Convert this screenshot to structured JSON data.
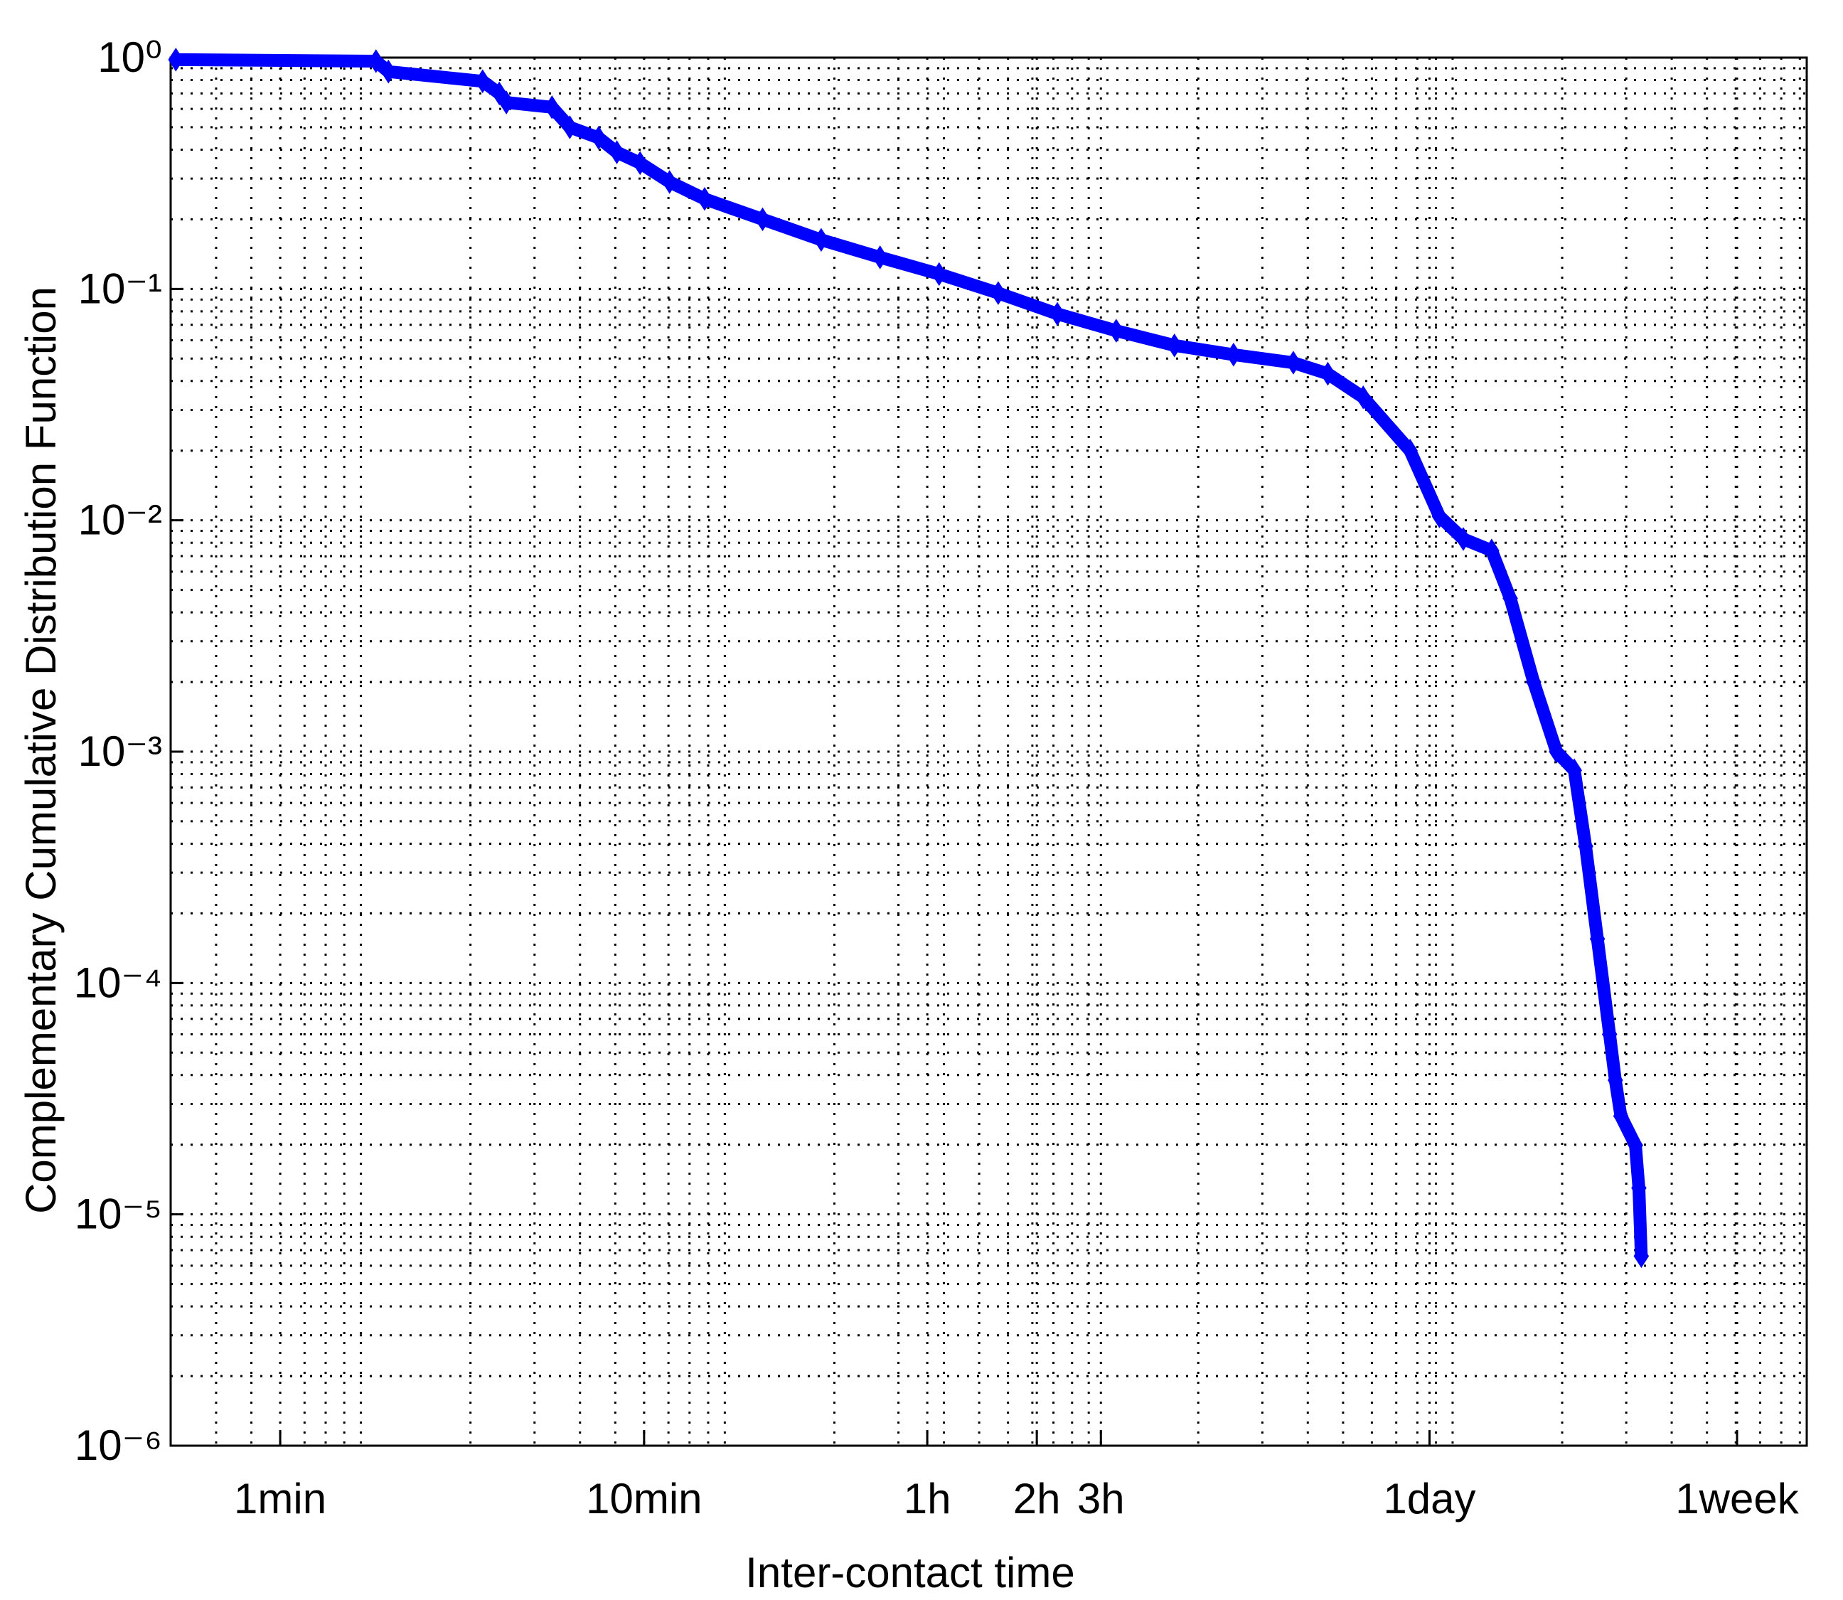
{
  "chart_data": {
    "type": "line",
    "x_label": "Inter-contact time",
    "y_label": "Complementary Cumulative Distribution Function",
    "xscale": "log",
    "yscale": "log",
    "grid": true,
    "minor_grid": true,
    "marker": "diamond",
    "xlim": [
      30,
      940000
    ],
    "ylim": [
      1e-06,
      1
    ],
    "xticks": [
      {
        "value": 60,
        "label": "1min"
      },
      {
        "value": 600,
        "label": "10min"
      },
      {
        "value": 3600,
        "label": "1h"
      },
      {
        "value": 7200,
        "label": "2h"
      },
      {
        "value": 10800,
        "label": "3h"
      },
      {
        "value": 86400,
        "label": "1day"
      },
      {
        "value": 604800,
        "label": "1week"
      }
    ],
    "yticks": [
      {
        "value": 1e-06,
        "label": "10⁻⁶"
      },
      {
        "value": 1e-05,
        "label": "10⁻⁵"
      },
      {
        "value": 0.0001,
        "label": "10⁻⁴"
      },
      {
        "value": 0.001,
        "label": "10⁻³"
      },
      {
        "value": 0.01,
        "label": "10⁻²"
      },
      {
        "value": 0.1,
        "label": "10⁻¹"
      },
      {
        "value": 1,
        "label": "10⁰"
      }
    ],
    "series": [
      {
        "color": "#0000ff",
        "x": [
          31,
          110,
          119,
          216,
          240,
          251,
          335,
          375,
          450,
          505,
          585,
          705,
          880,
          1270,
          1840,
          2670,
          3880,
          5640,
          8200,
          11900,
          17200,
          25000,
          36500,
          45400,
          56800,
          76400,
          92000,
          107000,
          128000,
          144000,
          167000,
          193000,
          216000,
          232000,
          250000,
          270000,
          280000,
          290000,
          318000,
          325000,
          330000
        ],
        "values": [
          0.98,
          0.965,
          0.87,
          0.79,
          0.7,
          0.64,
          0.61,
          0.5,
          0.45,
          0.39,
          0.35,
          0.29,
          0.245,
          0.2,
          0.163,
          0.137,
          0.116,
          0.096,
          0.078,
          0.066,
          0.057,
          0.052,
          0.048,
          0.043,
          0.034,
          0.02,
          0.0104,
          0.0083,
          0.0074,
          0.0046,
          0.002,
          0.001,
          0.00083,
          0.00039,
          0.000155,
          6e-05,
          3.8e-05,
          2.66e-05,
          1.99e-05,
          1.3e-05,
          6.6e-06
        ]
      }
    ]
  }
}
